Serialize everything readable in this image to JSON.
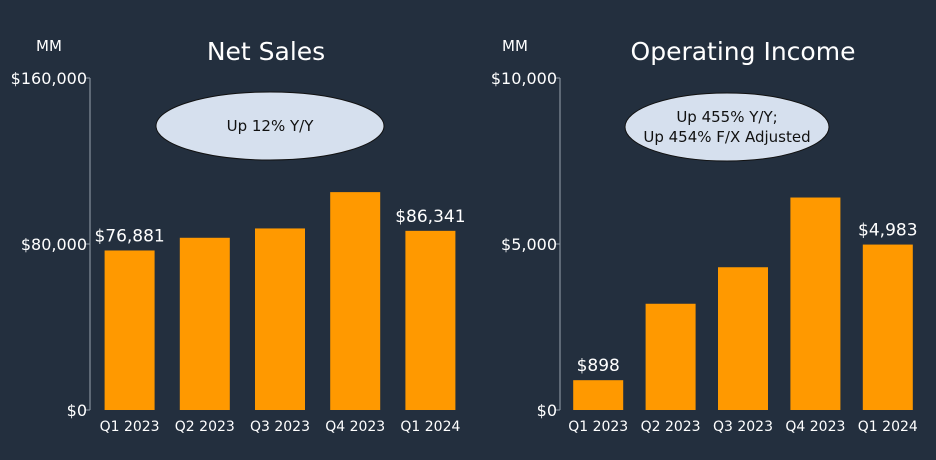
{
  "colors": {
    "background": "#232f3e",
    "bar": "#ff9900",
    "callout_fill": "#d6e0ee",
    "text": "#ffffff"
  },
  "chart_data": [
    {
      "type": "bar",
      "title": "Net Sales",
      "unit": "MM",
      "categories": [
        "Q1 2023",
        "Q2 2023",
        "Q3 2023",
        "Q4 2023",
        "Q1 2024"
      ],
      "values": [
        76881,
        83000,
        87500,
        105000,
        86341
      ],
      "ylim": [
        0,
        160000
      ],
      "yticks": [
        0,
        80000,
        160000
      ],
      "ytick_labels": [
        "$0",
        "$80,000",
        "$160,000"
      ],
      "data_labels": [
        {
          "index": 0,
          "text": "$76,881"
        },
        {
          "index": 4,
          "text": "$86,341"
        }
      ],
      "callout": [
        "Up 12% Y/Y"
      ]
    },
    {
      "type": "bar",
      "title": "Operating Income",
      "unit": "MM",
      "categories": [
        "Q1 2023",
        "Q2 2023",
        "Q3 2023",
        "Q4 2023",
        "Q1 2024"
      ],
      "values": [
        898,
        3200,
        4300,
        6400,
        4983
      ],
      "ylim": [
        0,
        10000
      ],
      "yticks": [
        0,
        5000,
        10000
      ],
      "ytick_labels": [
        "$0",
        "$5,000",
        "$10,000"
      ],
      "data_labels": [
        {
          "index": 0,
          "text": "$898"
        },
        {
          "index": 4,
          "text": "$4,983"
        }
      ],
      "callout": [
        "Up 455% Y/Y;",
        "Up 454% F/X Adjusted"
      ]
    }
  ]
}
